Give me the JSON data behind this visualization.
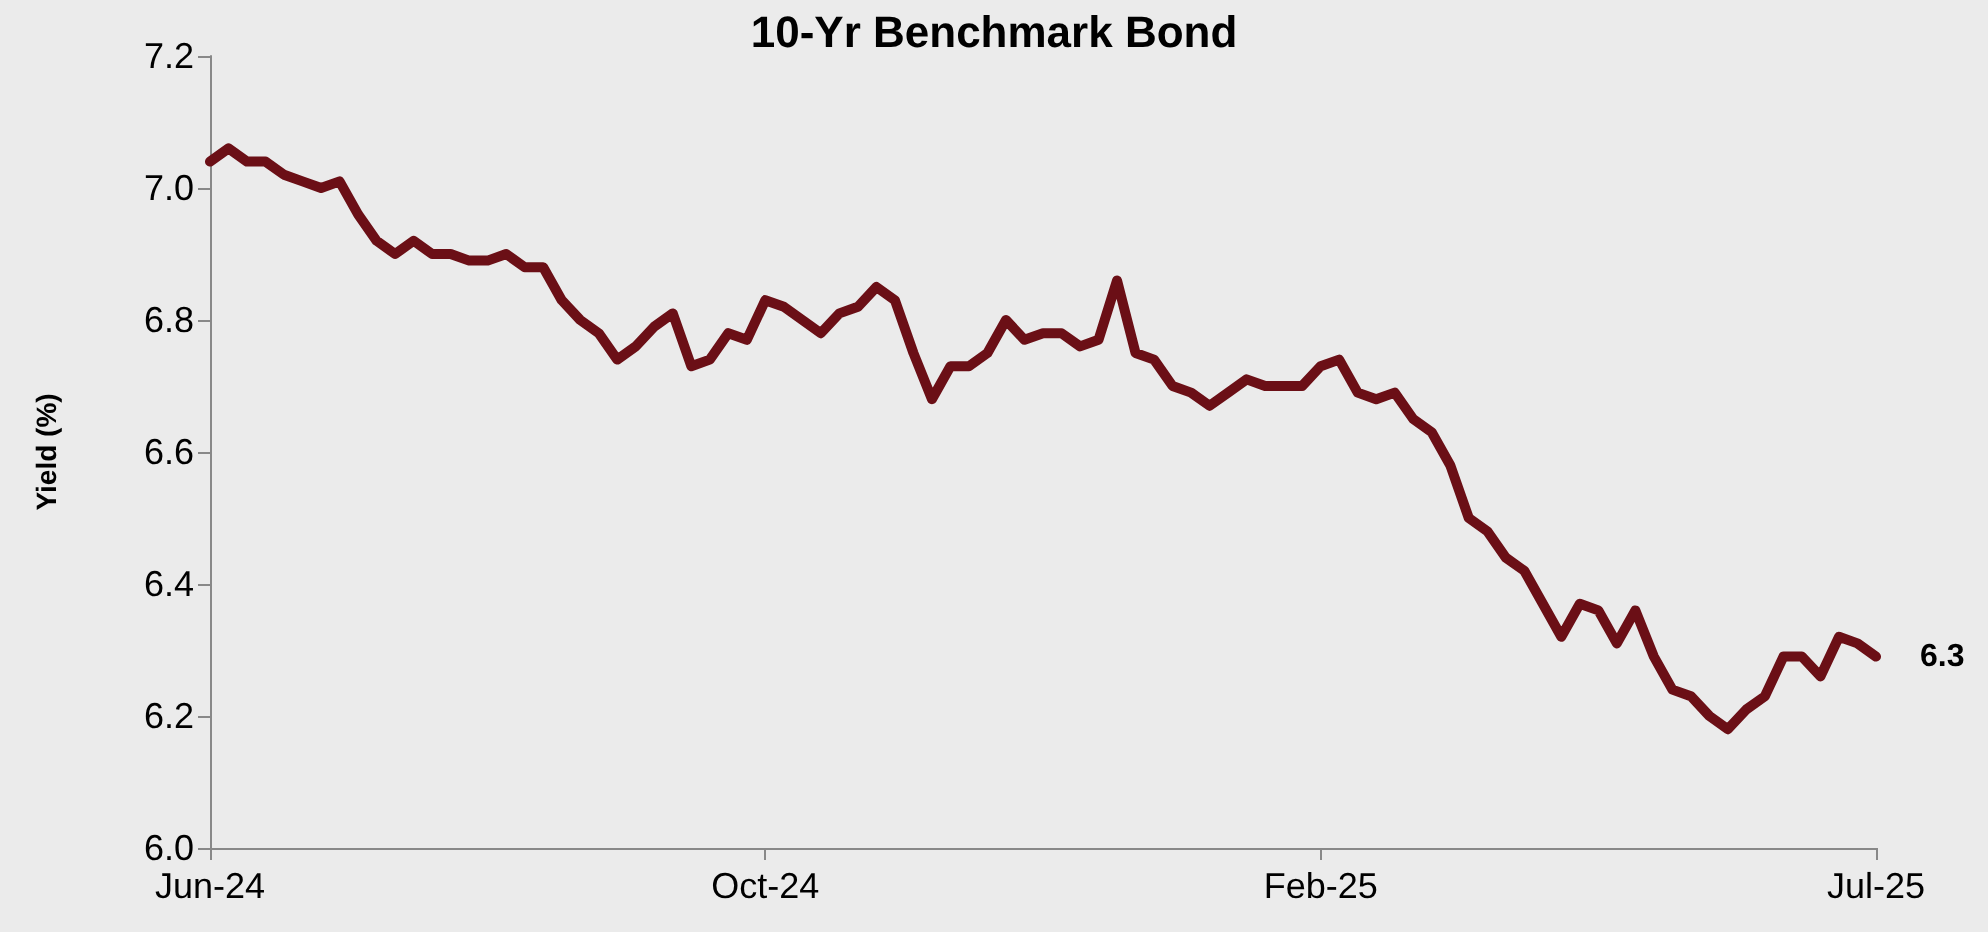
{
  "chart_data": {
    "type": "line",
    "title": "10-Yr Benchmark Bond",
    "ylabel": "Yield (%)",
    "categories": [
      "Jun-24",
      null,
      null,
      null,
      null,
      null,
      null,
      null,
      null,
      null,
      null,
      null,
      null,
      null,
      null,
      null,
      null,
      null,
      null,
      null,
      null,
      null,
      null,
      null,
      null,
      null,
      null,
      null,
      null,
      null,
      "Oct-24",
      null,
      null,
      null,
      null,
      null,
      null,
      null,
      null,
      null,
      null,
      null,
      null,
      null,
      null,
      null,
      null,
      null,
      null,
      null,
      null,
      null,
      null,
      null,
      null,
      null,
      null,
      null,
      null,
      null,
      "Feb-25",
      null,
      null,
      null,
      null,
      null,
      null,
      null,
      null,
      null,
      null,
      null,
      null,
      null,
      null,
      null,
      null,
      null,
      null,
      null,
      null,
      null,
      null,
      null,
      null,
      null,
      null,
      null,
      null,
      null,
      "Jul-25"
    ],
    "series": [
      {
        "color": "#6b0f16",
        "values": [
          7.04,
          7.06,
          7.04,
          7.04,
          7.02,
          7.01,
          7.0,
          7.01,
          6.96,
          6.92,
          6.9,
          6.92,
          6.9,
          6.9,
          6.89,
          6.89,
          6.9,
          6.88,
          6.88,
          6.83,
          6.8,
          6.78,
          6.74,
          6.76,
          6.79,
          6.81,
          6.73,
          6.74,
          6.78,
          6.77,
          6.83,
          6.82,
          6.8,
          6.78,
          6.81,
          6.82,
          6.85,
          6.83,
          6.75,
          6.68,
          6.73,
          6.73,
          6.75,
          6.8,
          6.77,
          6.78,
          6.78,
          6.76,
          6.77,
          6.86,
          6.75,
          6.74,
          6.7,
          6.69,
          6.67,
          6.69,
          6.71,
          6.7,
          6.7,
          6.7,
          6.73,
          6.74,
          6.69,
          6.68,
          6.69,
          6.65,
          6.63,
          6.58,
          6.5,
          6.48,
          6.44,
          6.42,
          6.37,
          6.32,
          6.37,
          6.36,
          6.31,
          6.36,
          6.29,
          6.24,
          6.23,
          6.2,
          6.18,
          6.21,
          6.23,
          6.29,
          6.29,
          6.26,
          6.32,
          6.31,
          6.29
        ]
      }
    ],
    "ylim": [
      6.0,
      7.2
    ],
    "yticks": [
      {
        "value": 6.0,
        "label": "6.0"
      },
      {
        "value": 6.2,
        "label": "6.2"
      },
      {
        "value": 6.4,
        "label": "6.4"
      },
      {
        "value": 6.6,
        "label": "6.6"
      },
      {
        "value": 6.8,
        "label": "6.8"
      },
      {
        "value": 7.0,
        "label": "7.0"
      },
      {
        "value": 7.2,
        "label": "7.2"
      }
    ],
    "annotations": [
      {
        "text": "6.3",
        "x": "Jul-25",
        "y": 6.29
      }
    ],
    "grid": false,
    "marker": "none",
    "line_style": "solid"
  }
}
